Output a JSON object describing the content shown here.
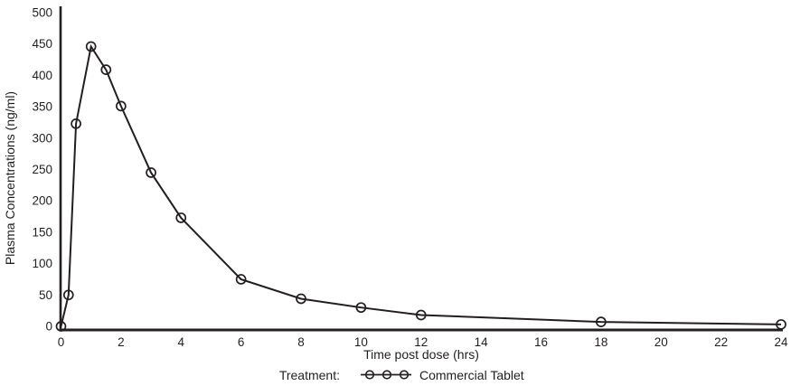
{
  "figure": {
    "background_color": "#ffffff",
    "ink_color": "#231f20"
  },
  "chart_data": {
    "type": "line",
    "title": "",
    "xlabel": "Time post dose (hrs)",
    "ylabel": "Plasma Concentrations (ng/ml)",
    "xlim": [
      0,
      24
    ],
    "ylim": [
      0,
      500
    ],
    "x_ticks": [
      0,
      2,
      4,
      6,
      8,
      10,
      12,
      14,
      16,
      18,
      20,
      22,
      24
    ],
    "y_ticks": [
      0,
      50,
      100,
      150,
      200,
      250,
      300,
      350,
      400,
      450,
      500
    ],
    "grid": false,
    "legend_position": "bottom-center",
    "legend": {
      "label": "Treatment:",
      "entries": [
        {
          "name": "Commercial Tablet",
          "marker": "open-circle-on-line"
        }
      ]
    },
    "series": [
      {
        "name": "Commercial Tablet",
        "color": "#231f20",
        "marker": "open-circle",
        "x": [
          0,
          0.25,
          0.5,
          1,
          1.5,
          2,
          3,
          4,
          6,
          8,
          10,
          12,
          18,
          24
        ],
        "y": [
          0,
          50,
          323,
          446,
          409,
          351,
          245,
          173,
          75,
          44,
          30,
          18,
          7,
          3
        ]
      }
    ]
  }
}
